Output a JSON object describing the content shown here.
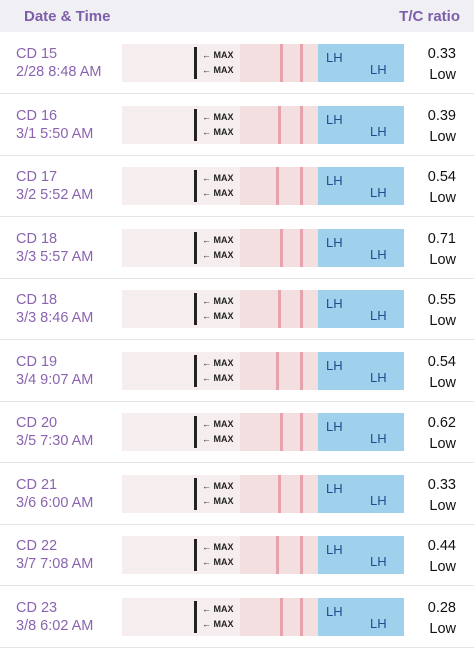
{
  "header": {
    "date_time": "Date & Time",
    "tc_ratio": "T/C ratio"
  },
  "strip_text": {
    "max": "← MAX",
    "brand": "LH"
  },
  "rows": [
    {
      "day": "CD 15",
      "time": "2/28 8:48 AM",
      "ratio": 0.33,
      "level": "Low"
    },
    {
      "day": "CD 16",
      "time": "3/1 5:50 AM",
      "ratio": 0.39,
      "level": "Low"
    },
    {
      "day": "CD 17",
      "time": "3/2 5:52 AM",
      "ratio": 0.54,
      "level": "Low"
    },
    {
      "day": "CD 18",
      "time": "3/3 5:57 AM",
      "ratio": 0.71,
      "level": "Low"
    },
    {
      "day": "CD 18",
      "time": "3/3 8:46 AM",
      "ratio": 0.55,
      "level": "Low"
    },
    {
      "day": "CD 19",
      "time": "3/4 9:07 AM",
      "ratio": 0.54,
      "level": "Low"
    },
    {
      "day": "CD 20",
      "time": "3/5 7:30 AM",
      "ratio": 0.62,
      "level": "Low"
    },
    {
      "day": "CD 21",
      "time": "3/6 6:00 AM",
      "ratio": 0.33,
      "level": "Low"
    },
    {
      "day": "CD 22",
      "time": "3/7 7:08 AM",
      "ratio": 0.44,
      "level": "Low"
    },
    {
      "day": "CD 23",
      "time": "3/8 6:02 AM",
      "ratio": 0.28,
      "level": "Low"
    }
  ]
}
